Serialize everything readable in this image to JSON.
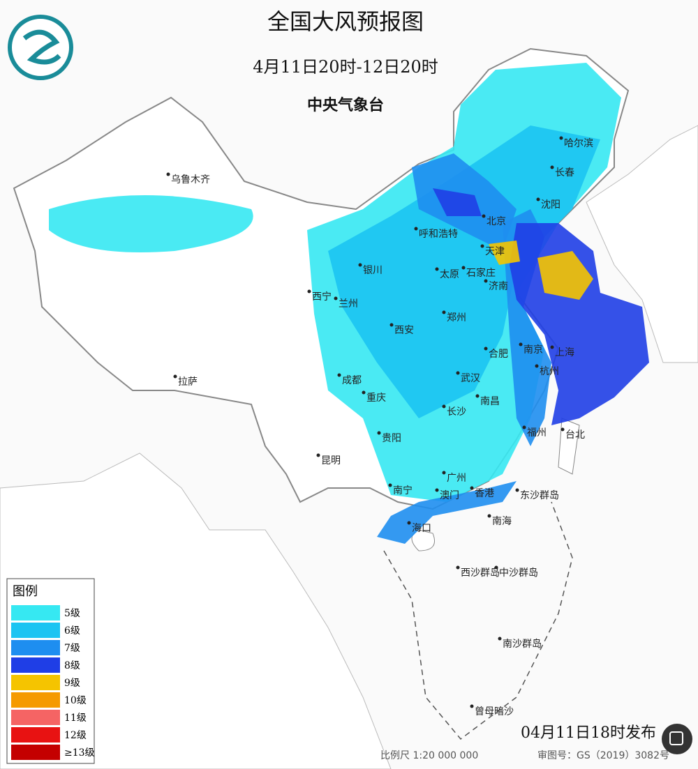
{
  "header": {
    "title": "全国大风预报图",
    "period": "4月11日20时-12日20时",
    "issuer": "中央气象台"
  },
  "legend": {
    "title": "图例",
    "items": [
      {
        "label": "5级",
        "color": "#36e8f2"
      },
      {
        "label": "6级",
        "color": "#1cc4f2"
      },
      {
        "label": "7级",
        "color": "#1e8ef0"
      },
      {
        "label": "8级",
        "color": "#1f3ee6"
      },
      {
        "label": "9级",
        "color": "#f5c400"
      },
      {
        "label": "10级",
        "color": "#f59a00"
      },
      {
        "label": "11级",
        "color": "#f56464"
      },
      {
        "label": "12级",
        "color": "#e81212"
      },
      {
        "label": "≥13级",
        "color": "#c40000"
      }
    ]
  },
  "places": [
    "乌鲁木齐",
    "哈尔滨",
    "长春",
    "沈阳",
    "北京",
    "呼和浩特",
    "天津",
    "银川",
    "太原",
    "石家庄",
    "济南",
    "西宁",
    "兰州",
    "西安",
    "郑州",
    "合肥",
    "南京",
    "上海",
    "杭州",
    "成都",
    "武汉",
    "重庆",
    "长沙",
    "南昌",
    "贵阳",
    "福州",
    "台北",
    "拉萨",
    "昆明",
    "南宁",
    "广州",
    "澳门",
    "香港",
    "海口",
    "南海",
    "东沙群岛",
    "西沙群岛",
    "中沙群岛",
    "南沙群岛",
    "曾母暗沙"
  ],
  "footer": {
    "release": "04月11日18时发布",
    "scale": "比例尺 1:20 000 000",
    "review": "审图号：GS（2019）3082号"
  }
}
